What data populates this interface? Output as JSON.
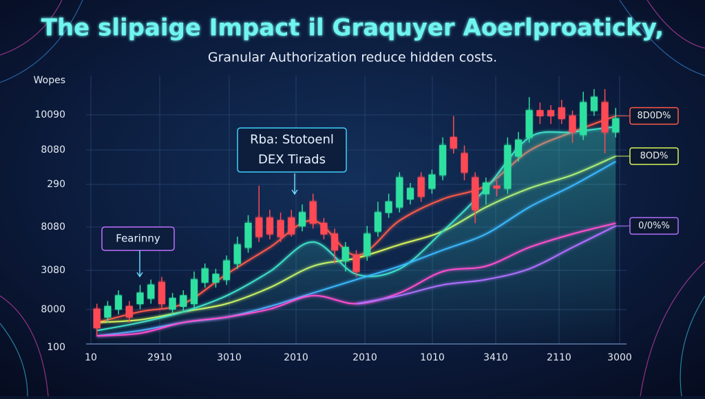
{
  "chart_data": {
    "type": "candlestick",
    "title": "The slipaige Impact il Graquyer Aoerlproaticky,",
    "subtitle": "Granular Authorization reduce hidden costs.",
    "y_axis_labels": [
      "Wopes",
      "10090",
      "8080",
      "290",
      "8080",
      "3080",
      "8000",
      "100"
    ],
    "x_axis_labels": [
      "10",
      "2910",
      "3010",
      "2010",
      "2010",
      "1010",
      "3410",
      "2110",
      "3000"
    ],
    "xlim": [
      -1,
      49
    ],
    "ylim": [
      0,
      100
    ],
    "up_color": "#2de0a0",
    "down_color": "#ff4a55",
    "open": [
      13,
      10,
      13,
      14,
      15,
      17,
      23,
      13,
      14,
      15,
      23,
      23,
      24,
      30,
      36,
      47,
      47,
      46,
      47,
      44,
      53,
      45,
      41,
      31,
      33,
      33,
      42,
      49,
      51,
      54,
      62,
      58,
      63,
      77,
      71,
      62,
      56,
      59,
      58,
      70,
      77,
      87,
      87,
      88,
      85,
      78,
      87,
      90,
      79
    ],
    "close": [
      6,
      14,
      18,
      10,
      19,
      22,
      15,
      17,
      18,
      24,
      28,
      26,
      31,
      37,
      45,
      40,
      41,
      40,
      41,
      49,
      45,
      41,
      35,
      36,
      27,
      41,
      49,
      53,
      62,
      58,
      55,
      63,
      74,
      73,
      64,
      50,
      60,
      58,
      74,
      76,
      87,
      85,
      85,
      84,
      79,
      90,
      92,
      79,
      84
    ],
    "high": [
      15,
      16,
      20,
      16,
      22,
      24,
      25,
      19,
      20,
      27,
      30,
      28,
      33,
      40,
      48,
      59,
      50,
      49,
      50,
      52,
      56,
      47,
      43,
      38,
      35,
      44,
      53,
      56,
      64,
      60,
      64,
      65,
      77,
      85,
      74,
      64,
      62,
      61,
      77,
      79,
      92,
      90,
      89,
      91,
      87,
      94,
      95,
      95,
      88
    ],
    "low": [
      3,
      8,
      11,
      8,
      13,
      15,
      13,
      11,
      12,
      13,
      21,
      21,
      22,
      28,
      34,
      38,
      39,
      38,
      40,
      42,
      43,
      39,
      30,
      27,
      25,
      31,
      40,
      47,
      49,
      52,
      53,
      56,
      61,
      71,
      61,
      45,
      52,
      55,
      56,
      68,
      75,
      82,
      82,
      82,
      75,
      76,
      85,
      71,
      77
    ],
    "lines": [
      {
        "name": "8D0D%",
        "color": "#ff5a4a",
        "x": [
          0,
          4,
          8,
          12,
          16,
          20,
          24,
          28,
          32,
          36,
          40,
          44,
          48
        ],
        "values": [
          8,
          12,
          15,
          26,
          36,
          46,
          33,
          46,
          54,
          59,
          72,
          79,
          85
        ]
      },
      {
        "name": "8OD%",
        "color": "#d6f55a",
        "x": [
          0,
          4,
          8,
          12,
          16,
          20,
          24,
          28,
          32,
          36,
          40,
          44,
          48
        ],
        "values": [
          8,
          9,
          12,
          15,
          21,
          29,
          32,
          37,
          42,
          51,
          58,
          63,
          70
        ]
      },
      {
        "color": "#40e0c8",
        "x": [
          0,
          4,
          8,
          12,
          16,
          20,
          24,
          28,
          32,
          36,
          40,
          44,
          48
        ],
        "values": [
          5,
          8,
          12,
          18,
          27,
          38,
          26,
          28,
          42,
          58,
          77,
          79,
          81
        ]
      },
      {
        "color": "#3ab8ff",
        "x": [
          0,
          4,
          8,
          12,
          16,
          20,
          24,
          28,
          32,
          36,
          40,
          44,
          48
        ],
        "values": [
          3,
          5,
          8,
          10,
          14,
          19,
          24,
          29,
          35,
          41,
          51,
          59,
          68
        ]
      },
      {
        "color": "#ff4fd0",
        "x": [
          0,
          4,
          8,
          12,
          16,
          20,
          24,
          28,
          32,
          36,
          40,
          44,
          48
        ],
        "values": [
          3,
          4,
          8,
          10,
          13,
          18,
          15,
          19,
          27,
          29,
          36,
          41,
          45
        ]
      },
      {
        "name": "0/0%%",
        "color": "#b070ff",
        "x": [
          24,
          28,
          32,
          36,
          40,
          44,
          48
        ],
        "values": [
          15,
          18,
          22,
          24,
          28,
          36,
          44
        ]
      }
    ],
    "annotations": [
      {
        "text": [
          "Fearinny"
        ]
      },
      {
        "text": [
          "Rba: Stotoenl",
          "DEX Tirads"
        ]
      }
    ]
  }
}
